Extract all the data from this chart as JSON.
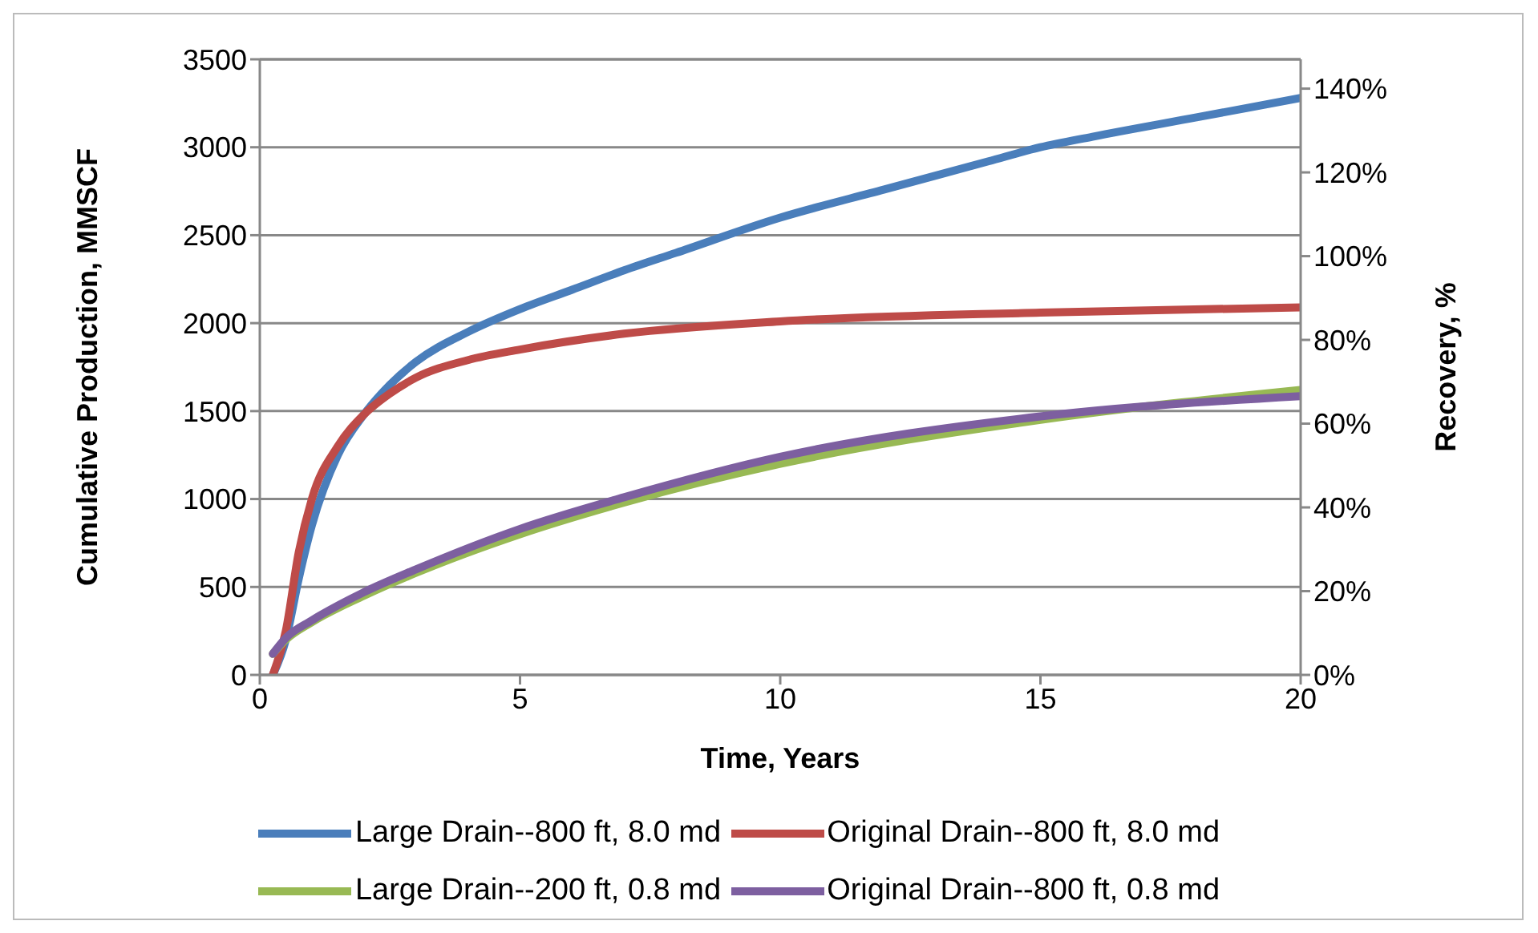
{
  "chart_data": {
    "type": "line",
    "xlabel": "Time, Years",
    "ylabel": "Cumulative Production, MMSCF",
    "y2label": "Recovery, %",
    "xlim": [
      0,
      20
    ],
    "xticks": [
      0,
      5,
      10,
      15,
      20
    ],
    "ylim": [
      0,
      3500
    ],
    "yticks": [
      0,
      500,
      1000,
      1500,
      2000,
      2500,
      3000,
      3500
    ],
    "y2lim": [
      0,
      147
    ],
    "y2ticks": [
      {
        "value": 0,
        "label": "0%"
      },
      {
        "value": 20,
        "label": "20%"
      },
      {
        "value": 40,
        "label": "40%"
      },
      {
        "value": 60,
        "label": "60%"
      },
      {
        "value": 80,
        "label": "80%"
      },
      {
        "value": 100,
        "label": "100%"
      },
      {
        "value": 120,
        "label": "120%"
      },
      {
        "value": 140,
        "label": "140%"
      }
    ],
    "grid": "y",
    "legend": "bottom",
    "marker": "none",
    "line_style": "solid",
    "series": [
      {
        "name": "Large Drain--800 ft, 8.0 md",
        "color": "#4a7ebb",
        "x": [
          0.25,
          0.5,
          0.75,
          1,
          1.5,
          2,
          2.5,
          3,
          4,
          5,
          6,
          7,
          8,
          10,
          12,
          14,
          15,
          16,
          18,
          20
        ],
        "values": [
          0,
          200,
          550,
          850,
          1250,
          1480,
          1650,
          1780,
          1950,
          2080,
          2190,
          2300,
          2400,
          2600,
          2760,
          2920,
          3000,
          3060,
          3170,
          3280
        ]
      },
      {
        "name": "Original Drain--800 ft, 8.0 md",
        "color": "#be4b48",
        "x": [
          0.25,
          0.5,
          0.75,
          1,
          1.5,
          2,
          2.5,
          3,
          4,
          5,
          7,
          10,
          15,
          20
        ],
        "values": [
          0,
          250,
          700,
          1000,
          1300,
          1480,
          1600,
          1690,
          1790,
          1850,
          1940,
          2010,
          2060,
          2090
        ]
      },
      {
        "name": "Large Drain--200 ft, 0.8 md",
        "color": "#98b954",
        "x": [
          0.25,
          0.5,
          1,
          2,
          3,
          5,
          7,
          10,
          15,
          20
        ],
        "values": [
          120,
          200,
          300,
          450,
          580,
          800,
          980,
          1200,
          1450,
          1620
        ]
      },
      {
        "name": "Original Drain--800 ft, 0.8 md",
        "color": "#7d5fa0",
        "x": [
          0.25,
          0.5,
          1,
          2,
          3,
          5,
          7,
          10,
          15,
          20
        ],
        "values": [
          120,
          210,
          310,
          470,
          600,
          830,
          1010,
          1240,
          1470,
          1585
        ]
      }
    ]
  }
}
